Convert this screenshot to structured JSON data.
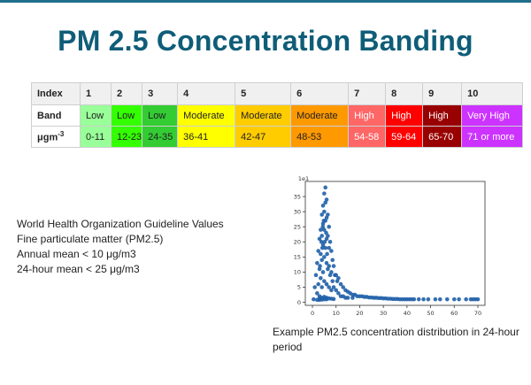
{
  "slide": {
    "title": "PM 2.5 Concentration Banding"
  },
  "band_table": {
    "row_labels": [
      "Index",
      "Band",
      "μgm",
      "-3"
    ],
    "columns": [
      {
        "index": "1",
        "band": "Low",
        "range": "0-11",
        "bg": "#99ff99",
        "fg": "#222222"
      },
      {
        "index": "2",
        "band": "Low",
        "range": "12-23",
        "bg": "#33ff00",
        "fg": "#222222"
      },
      {
        "index": "3",
        "band": "Low",
        "range": "24-35",
        "bg": "#33cc33",
        "fg": "#222222"
      },
      {
        "index": "4",
        "band": "Moderate",
        "range": "36-41",
        "bg": "#ffff00",
        "fg": "#222222"
      },
      {
        "index": "5",
        "band": "Moderate",
        "range": "42-47",
        "bg": "#ffcc00",
        "fg": "#222222"
      },
      {
        "index": "6",
        "band": "Moderate",
        "range": "48-53",
        "bg": "#ff9900",
        "fg": "#222222"
      },
      {
        "index": "7",
        "band": "High",
        "range": "54-58",
        "bg": "#ff6666",
        "fg": "#ffffff"
      },
      {
        "index": "8",
        "band": "High",
        "range": "59-64",
        "bg": "#ff0000",
        "fg": "#ffffff"
      },
      {
        "index": "9",
        "band": "High",
        "range": "65-70",
        "bg": "#990000",
        "fg": "#ffffff"
      },
      {
        "index": "10",
        "band": "Very High",
        "range": "71 or more",
        "bg": "#cc33ff",
        "fg": "#ffffff"
      }
    ]
  },
  "who_guidelines": {
    "lines": [
      "World Health Organization Guideline Values",
      "Fine particulate matter (PM2.5)",
      "Annual mean < 10 μg/m3",
      "24-hour mean < 25 μg/m3"
    ]
  },
  "caption": {
    "text": "Example PM2.5 concentration distribution in 24-hour period"
  },
  "chart_data": {
    "type": "scatter",
    "title": "",
    "xlabel": "",
    "ylabel": "",
    "corner_label": "1e1",
    "xlim": [
      -3,
      73
    ],
    "ylim": [
      -1,
      40
    ],
    "xticks": [
      0,
      10,
      20,
      30,
      40,
      50,
      60,
      70
    ],
    "yticks": [
      0,
      5,
      10,
      15,
      20,
      25,
      30,
      35
    ],
    "grid": false,
    "color": "#1f5fa8",
    "series": [
      {
        "x": [
          0.5,
          1,
          1.5,
          2,
          2,
          2.5,
          2.5,
          3,
          3,
          3,
          3.5,
          3.5,
          3.5,
          4,
          4,
          4,
          4,
          4.5,
          4.5,
          4.5,
          4.5,
          5,
          5,
          5,
          5,
          5,
          5.5,
          5.5,
          5.5,
          5.5,
          6,
          6,
          6,
          6,
          6,
          6.5,
          6.5,
          6.5,
          7,
          7,
          7,
          7,
          7.5,
          7.5,
          8,
          8,
          8,
          8.5,
          8.5,
          9,
          9,
          9.5,
          10,
          10,
          10.5,
          11,
          11,
          12,
          12,
          13,
          13,
          14,
          14,
          15,
          15,
          16,
          17,
          17,
          18,
          19,
          20,
          21,
          22,
          23,
          24,
          25,
          26,
          27,
          28,
          29,
          30,
          31,
          32,
          33,
          34,
          35,
          36,
          37,
          38,
          39,
          40,
          41,
          42,
          43,
          45,
          47,
          49,
          52,
          54,
          57,
          60,
          62,
          65,
          67,
          68,
          69,
          70,
          2,
          3,
          4,
          5,
          6,
          7,
          8,
          9,
          3,
          4,
          5,
          6,
          3.2,
          4.2,
          5.2,
          4.8,
          5.8,
          6.2,
          3.8,
          4.4
        ],
        "y": [
          1,
          5,
          9,
          13,
          3,
          17,
          6,
          21,
          11,
          2,
          24,
          16,
          8,
          29,
          22,
          14,
          5,
          32,
          26,
          19,
          10,
          36,
          30,
          24,
          15,
          7,
          38,
          33,
          27,
          18,
          34,
          28,
          21,
          13,
          6,
          29,
          22,
          11,
          25,
          18,
          12,
          5,
          20,
          9,
          17,
          10,
          4,
          14,
          7,
          12,
          5,
          9,
          9,
          4,
          7,
          8,
          3,
          6,
          2,
          5,
          2,
          4,
          1.5,
          3.5,
          1.5,
          3,
          2.5,
          1.5,
          2.5,
          2,
          2,
          2,
          1.8,
          1.8,
          1.6,
          1.6,
          1.5,
          1.5,
          1.4,
          1.4,
          1.3,
          1.3,
          1.2,
          1.2,
          1.1,
          1.1,
          1.1,
          1,
          1,
          1,
          1,
          1,
          1,
          1,
          1,
          1,
          1,
          1,
          1,
          1,
          1,
          1,
          1,
          1,
          1,
          1,
          1,
          0.8,
          1.2,
          1.5,
          1.8,
          1.5,
          1.3,
          1.2,
          1.1,
          0.8,
          0.9,
          1,
          1,
          12,
          18,
          20,
          27,
          23,
          16,
          20,
          25
        ]
      }
    ]
  }
}
